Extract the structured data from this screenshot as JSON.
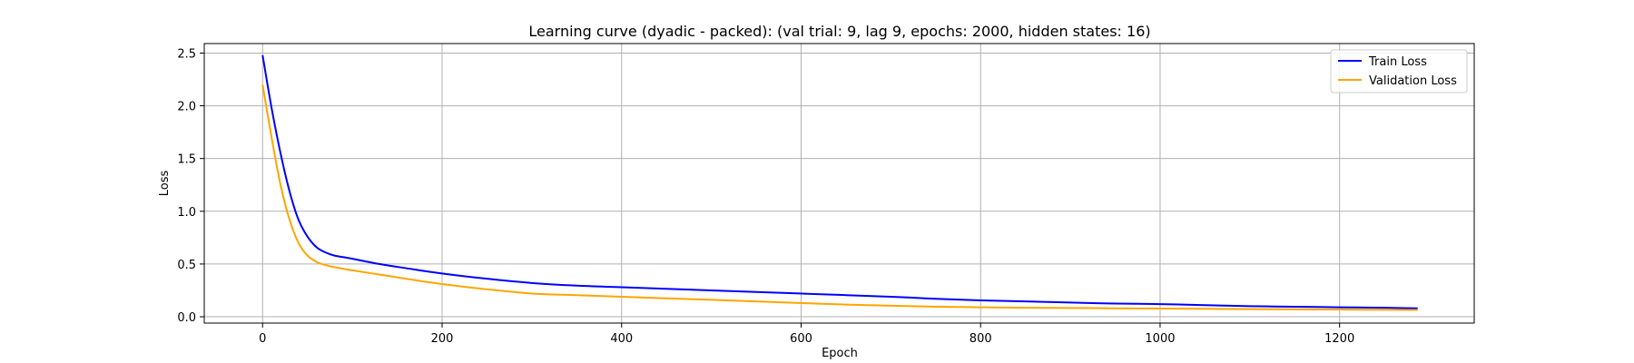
{
  "chart_data": {
    "type": "line",
    "title": "Learning curve (dyadic - packed): (val trial: 9, lag 9, epochs: 2000, hidden states: 16)",
    "xlabel": "Epoch",
    "ylabel": "Loss",
    "xlim": [
      -65,
      1350
    ],
    "ylim": [
      -0.06,
      2.59
    ],
    "xticks": [
      0,
      200,
      400,
      600,
      800,
      1000,
      1200
    ],
    "yticks": [
      0.0,
      0.5,
      1.0,
      1.5,
      2.0,
      2.5
    ],
    "xtick_labels": [
      "0",
      "200",
      "400",
      "600",
      "800",
      "1000",
      "1200"
    ],
    "ytick_labels": [
      "0.0",
      "0.5",
      "1.0",
      "1.5",
      "2.0",
      "2.5"
    ],
    "grid": true,
    "legend_position": "top-right",
    "series": [
      {
        "name": "Train Loss",
        "color": "#0000ff",
        "x": [
          0,
          10,
          20,
          30,
          40,
          50,
          60,
          70,
          80,
          100,
          130,
          160,
          200,
          250,
          300,
          350,
          400,
          450,
          500,
          550,
          600,
          650,
          700,
          750,
          800,
          850,
          900,
          950,
          1000,
          1050,
          1100,
          1150,
          1200,
          1250,
          1287
        ],
        "y": [
          2.48,
          1.98,
          1.55,
          1.19,
          0.92,
          0.76,
          0.66,
          0.61,
          0.58,
          0.55,
          0.5,
          0.46,
          0.41,
          0.36,
          0.32,
          0.295,
          0.28,
          0.265,
          0.25,
          0.235,
          0.22,
          0.205,
          0.19,
          0.17,
          0.155,
          0.145,
          0.135,
          0.125,
          0.12,
          0.11,
          0.1,
          0.095,
          0.09,
          0.085,
          0.08
        ]
      },
      {
        "name": "Validation Loss",
        "color": "#ffa500",
        "x": [
          0,
          10,
          20,
          30,
          40,
          50,
          60,
          70,
          80,
          100,
          130,
          160,
          200,
          250,
          300,
          350,
          400,
          450,
          500,
          550,
          600,
          650,
          700,
          750,
          800,
          850,
          900,
          950,
          1000,
          1050,
          1100,
          1150,
          1200,
          1250,
          1287
        ],
        "y": [
          2.2,
          1.7,
          1.25,
          0.92,
          0.7,
          0.58,
          0.52,
          0.49,
          0.47,
          0.44,
          0.4,
          0.36,
          0.31,
          0.26,
          0.22,
          0.205,
          0.19,
          0.175,
          0.16,
          0.145,
          0.13,
          0.115,
          0.105,
          0.095,
          0.09,
          0.085,
          0.083,
          0.08,
          0.078,
          0.075,
          0.072,
          0.07,
          0.068,
          0.066,
          0.065
        ]
      }
    ]
  }
}
